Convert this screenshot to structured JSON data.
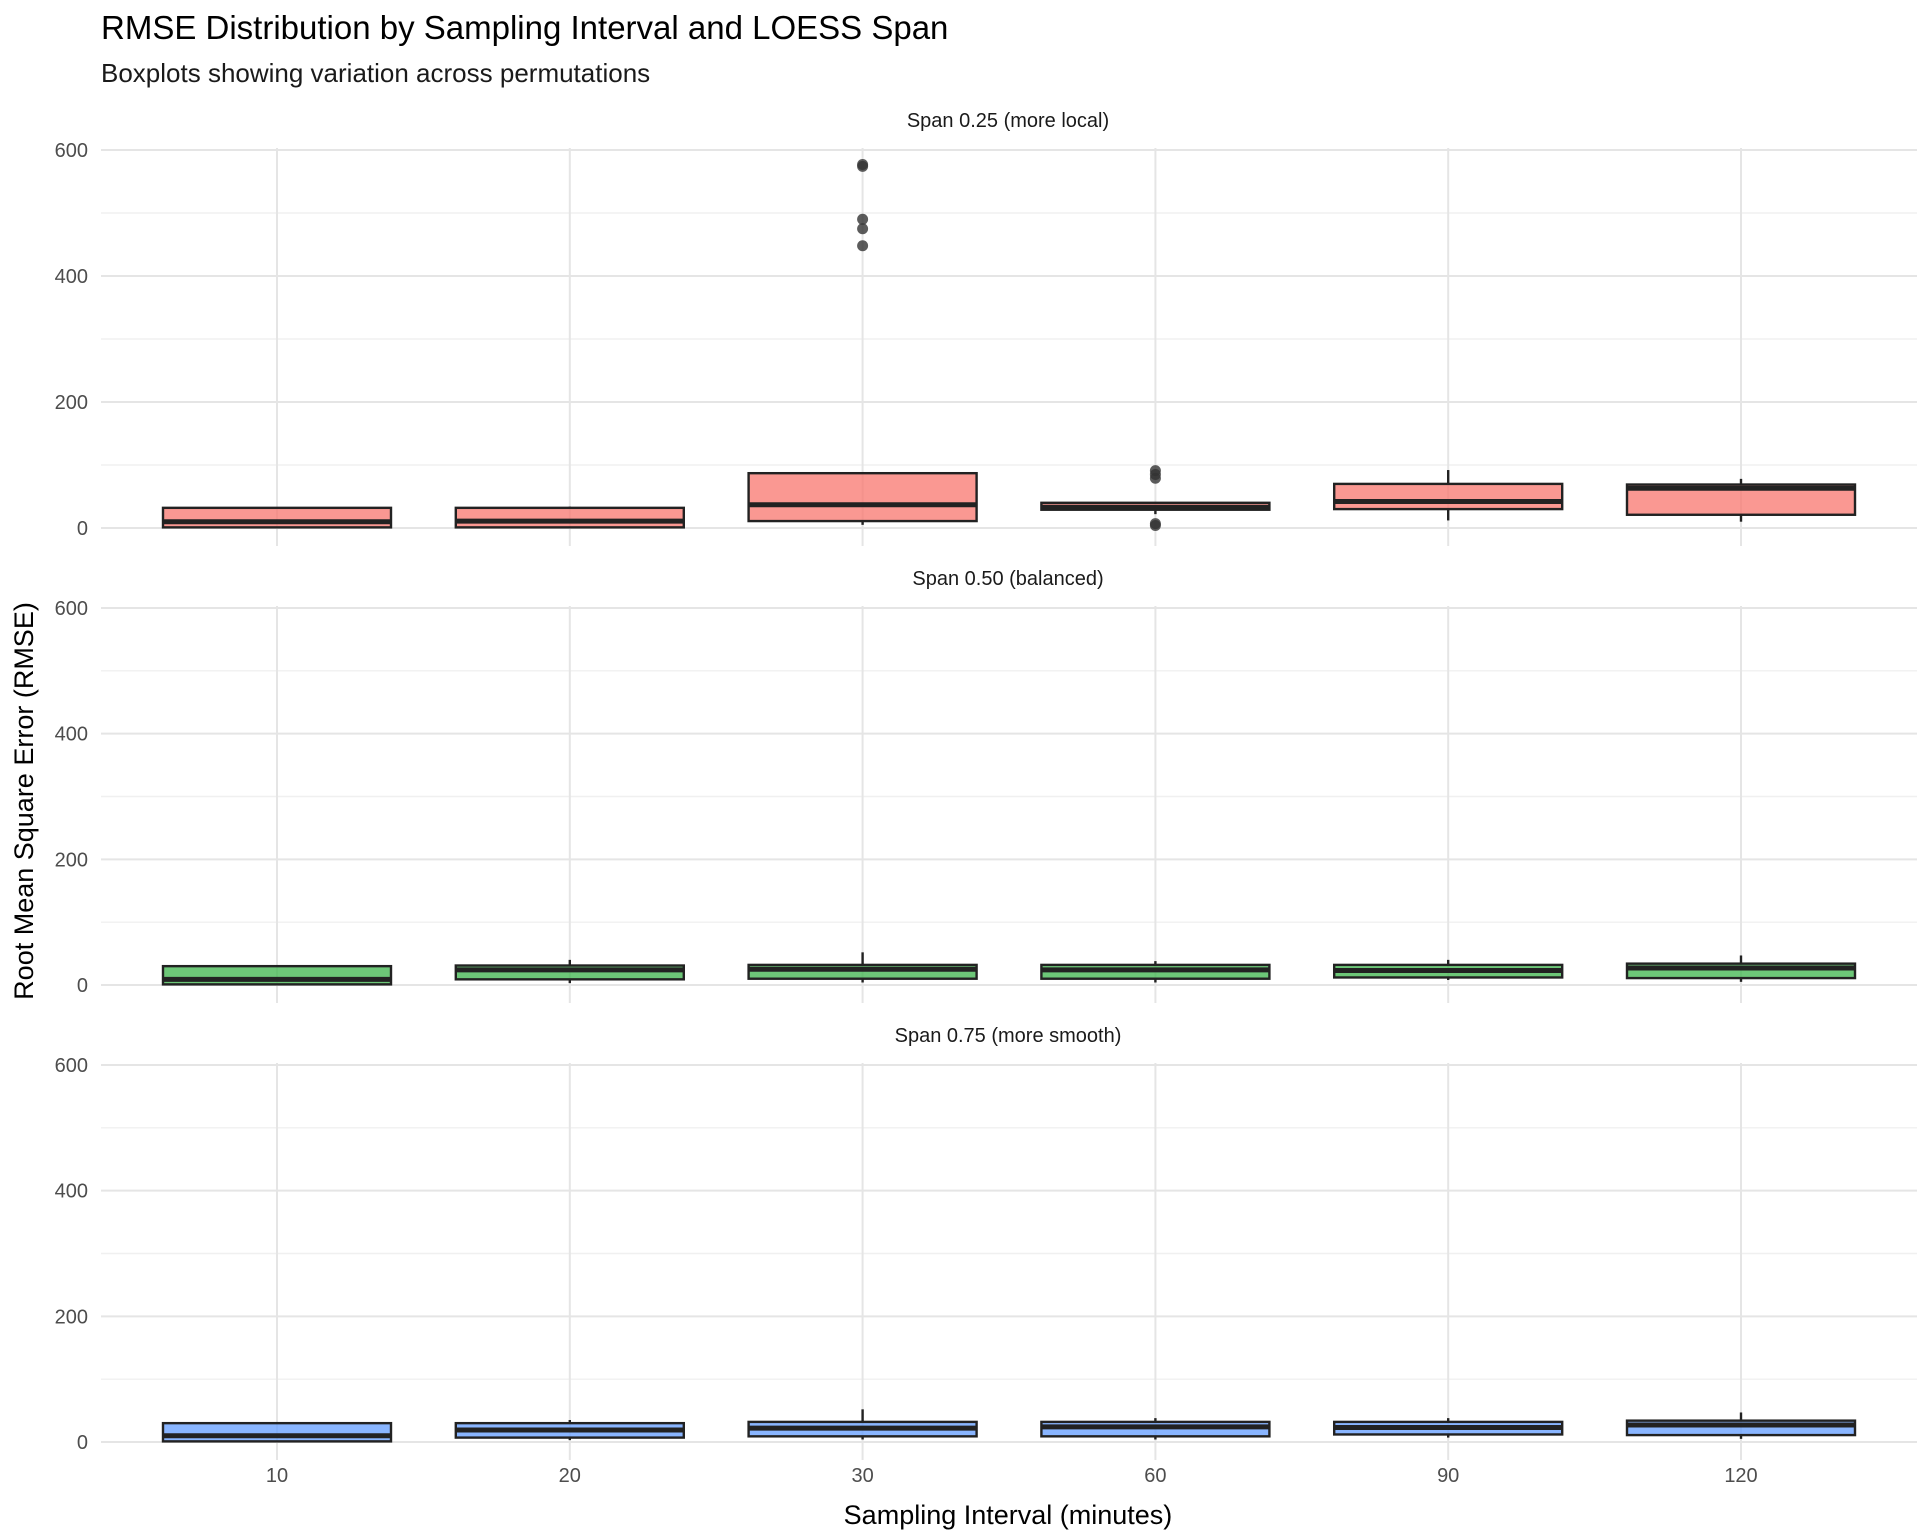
{
  "chart_data": {
    "type": "boxplot",
    "title": "RMSE Distribution by Sampling Interval and LOESS Span",
    "subtitle": "Boxplots showing variation across permutations",
    "xlabel": "Sampling Interval (minutes)",
    "ylabel": "Root Mean Square Error (RMSE)",
    "categories": [
      "10",
      "20",
      "30",
      "60",
      "90",
      "120"
    ],
    "ylim": [
      0,
      600
    ],
    "yticks": [
      0,
      200,
      400,
      600
    ],
    "grid": true,
    "legend": "none",
    "panels": [
      {
        "label": "Span 0.25 (more local)",
        "color": "#F8766D",
        "boxes": [
          {
            "category": "10",
            "min": 0,
            "q1": 1,
            "median": 10,
            "q3": 32,
            "max": 33,
            "outliers": []
          },
          {
            "category": "20",
            "min": 0,
            "q1": 1,
            "median": 11,
            "q3": 32,
            "max": 34,
            "outliers": []
          },
          {
            "category": "30",
            "min": 5,
            "q1": 11,
            "median": 37,
            "q3": 87,
            "max": 87,
            "outliers": [
              448,
              475,
              490,
              574,
              577
            ]
          },
          {
            "category": "60",
            "min": 22,
            "q1": 29,
            "median": 33,
            "q3": 40,
            "max": 40,
            "outliers": [
              4,
              7,
              79,
              85,
              91
            ]
          },
          {
            "category": "90",
            "min": 12,
            "q1": 30,
            "median": 42,
            "q3": 70,
            "max": 92,
            "outliers": []
          },
          {
            "category": "120",
            "min": 10,
            "q1": 21,
            "median": 63,
            "q3": 69,
            "max": 78,
            "outliers": []
          }
        ]
      },
      {
        "label": "Span 0.50 (balanced)",
        "color": "#3CB44B",
        "boxes": [
          {
            "category": "10",
            "min": 0,
            "q1": 1,
            "median": 9,
            "q3": 30,
            "max": 31,
            "outliers": []
          },
          {
            "category": "20",
            "min": 3,
            "q1": 9,
            "median": 24,
            "q3": 31,
            "max": 40,
            "outliers": []
          },
          {
            "category": "30",
            "min": 4,
            "q1": 10,
            "median": 25,
            "q3": 32,
            "max": 52,
            "outliers": []
          },
          {
            "category": "60",
            "min": 4,
            "q1": 10,
            "median": 24,
            "q3": 32,
            "max": 38,
            "outliers": []
          },
          {
            "category": "90",
            "min": 8,
            "q1": 12,
            "median": 23,
            "q3": 32,
            "max": 40,
            "outliers": []
          },
          {
            "category": "120",
            "min": 5,
            "q1": 11,
            "median": 27,
            "q3": 34,
            "max": 47,
            "outliers": []
          }
        ]
      },
      {
        "label": "Span 0.75 (more smooth)",
        "color": "#619CFF",
        "boxes": [
          {
            "category": "10",
            "min": 0,
            "q1": 1,
            "median": 10,
            "q3": 30,
            "max": 31,
            "outliers": []
          },
          {
            "category": "20",
            "min": 3,
            "q1": 7,
            "median": 19,
            "q3": 30,
            "max": 35,
            "outliers": []
          },
          {
            "category": "30",
            "min": 4,
            "q1": 9,
            "median": 22,
            "q3": 32,
            "max": 52,
            "outliers": []
          },
          {
            "category": "60",
            "min": 4,
            "q1": 9,
            "median": 24,
            "q3": 32,
            "max": 38,
            "outliers": []
          },
          {
            "category": "90",
            "min": 7,
            "q1": 12,
            "median": 23,
            "q3": 32,
            "max": 38,
            "outliers": []
          },
          {
            "category": "120",
            "min": 5,
            "q1": 11,
            "median": 27,
            "q3": 34,
            "max": 47,
            "outliers": []
          }
        ]
      }
    ]
  }
}
